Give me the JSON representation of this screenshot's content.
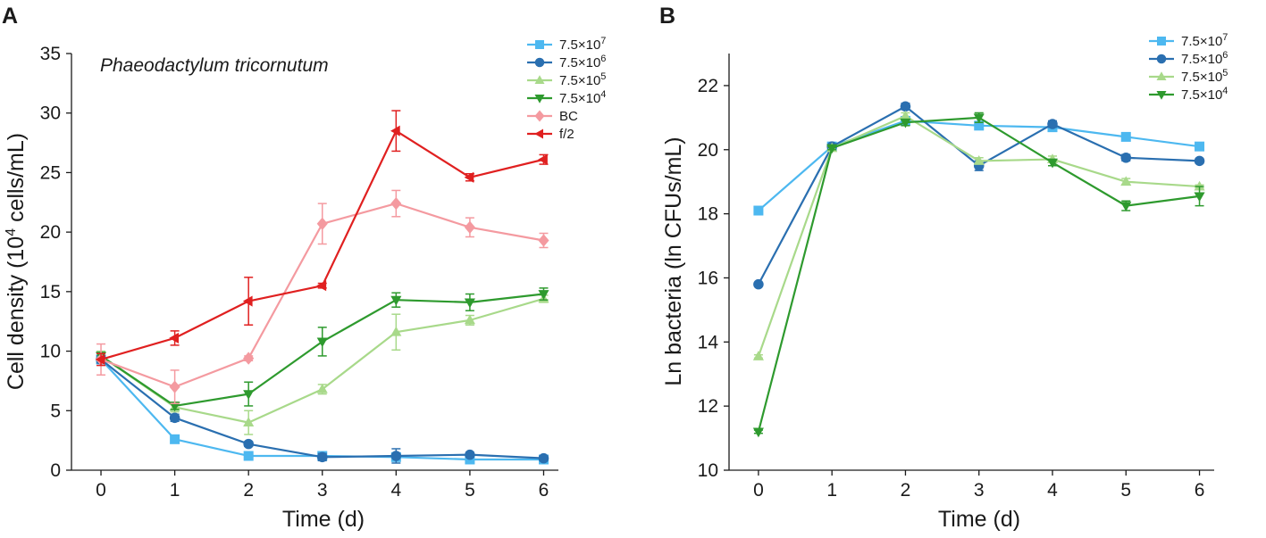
{
  "chart_data": [
    {
      "panel": "A",
      "type": "line",
      "annotation": "Phaeodactylum tricornutum",
      "xlabel": "Time (d)",
      "ylabel_main": "Cell density (10",
      "ylabel_sup": "4",
      "ylabel_tail": " cells/mL)",
      "x": [
        0,
        1,
        2,
        3,
        4,
        5,
        6
      ],
      "xlim": [
        -0.4,
        6.2
      ],
      "ylim": [
        0,
        35
      ],
      "yticks": [
        0,
        5,
        10,
        15,
        20,
        25,
        30,
        35
      ],
      "legend_position": "top-right",
      "series": [
        {
          "name_base": "7.5×10",
          "name_exp": "7",
          "color": "#4db8f0",
          "marker": "square",
          "values": [
            9.3,
            2.6,
            1.2,
            1.2,
            1.1,
            0.9,
            0.9
          ],
          "errors": [
            0.3,
            0.2,
            0.1,
            0.1,
            0.1,
            0.1,
            0.1
          ]
        },
        {
          "name_base": "7.5×10",
          "name_exp": "6",
          "color": "#2a6fb0",
          "marker": "circle",
          "values": [
            9.3,
            4.4,
            2.2,
            1.1,
            1.2,
            1.3,
            1.0
          ],
          "errors": [
            0.3,
            0.3,
            0.2,
            0.3,
            0.6,
            0.2,
            0.2
          ]
        },
        {
          "name_base": "7.5×10",
          "name_exp": "5",
          "color": "#a8d98a",
          "marker": "triangle-up",
          "values": [
            9.6,
            5.3,
            4.0,
            6.8,
            11.6,
            12.6,
            14.4
          ],
          "errors": [
            0.4,
            0.4,
            1.0,
            0.4,
            1.5,
            0.4,
            0.3
          ]
        },
        {
          "name_base": "7.5×10",
          "name_exp": "4",
          "color": "#2e9a2e",
          "marker": "triangle-down",
          "values": [
            9.6,
            5.4,
            6.4,
            10.8,
            14.3,
            14.1,
            14.8
          ],
          "errors": [
            0.3,
            0.3,
            1.0,
            1.2,
            0.6,
            0.7,
            0.5
          ]
        },
        {
          "name_base": "BC",
          "name_exp": "",
          "color": "#f49aa0",
          "marker": "diamond",
          "values": [
            9.3,
            7.0,
            9.4,
            20.7,
            22.4,
            20.4,
            19.3
          ],
          "errors": [
            1.3,
            1.4,
            0.2,
            1.7,
            1.1,
            0.8,
            0.6
          ]
        },
        {
          "name_base": "f/2",
          "name_exp": "",
          "color": "#e02020",
          "marker": "triangle-left",
          "values": [
            9.3,
            11.1,
            14.2,
            15.5,
            28.5,
            24.6,
            26.1
          ],
          "errors": [
            0.5,
            0.6,
            2.0,
            0.2,
            1.7,
            0.3,
            0.4
          ]
        }
      ]
    },
    {
      "panel": "B",
      "type": "line",
      "xlabel": "Time (d)",
      "ylabel": "Ln bacteria (ln CFUs/mL)",
      "x": [
        0,
        1,
        2,
        3,
        4,
        5,
        6
      ],
      "xlim": [
        -0.4,
        6.2
      ],
      "ylim": [
        10,
        23
      ],
      "yticks": [
        10,
        12,
        14,
        16,
        18,
        20,
        22
      ],
      "legend_position": "top-right",
      "series": [
        {
          "name_base": "7.5×10",
          "name_exp": "7",
          "color": "#4db8f0",
          "marker": "square",
          "values": [
            18.1,
            20.1,
            20.9,
            20.75,
            20.7,
            20.4,
            20.1
          ],
          "errors": [
            0.05,
            0.05,
            0.1,
            0.1,
            0.05,
            0.05,
            0.05
          ]
        },
        {
          "name_base": "7.5×10",
          "name_exp": "6",
          "color": "#2a6fb0",
          "marker": "circle",
          "values": [
            15.8,
            20.1,
            21.35,
            19.5,
            20.8,
            19.75,
            19.65
          ],
          "errors": [
            0.05,
            0.05,
            0.1,
            0.15,
            0.1,
            0.1,
            0.05
          ]
        },
        {
          "name_base": "7.5×10",
          "name_exp": "5",
          "color": "#a8d98a",
          "marker": "triangle-up",
          "values": [
            13.55,
            20.05,
            21.05,
            19.65,
            19.7,
            19.0,
            18.85
          ],
          "errors": [
            0.05,
            0.05,
            0.1,
            0.1,
            0.1,
            0.1,
            0.05
          ]
        },
        {
          "name_base": "7.5×10",
          "name_exp": "4",
          "color": "#2e9a2e",
          "marker": "triangle-down",
          "values": [
            11.2,
            20.05,
            20.85,
            21.0,
            19.6,
            18.25,
            18.55
          ],
          "errors": [
            0.05,
            0.05,
            0.1,
            0.15,
            0.1,
            0.15,
            0.3
          ]
        }
      ]
    }
  ]
}
